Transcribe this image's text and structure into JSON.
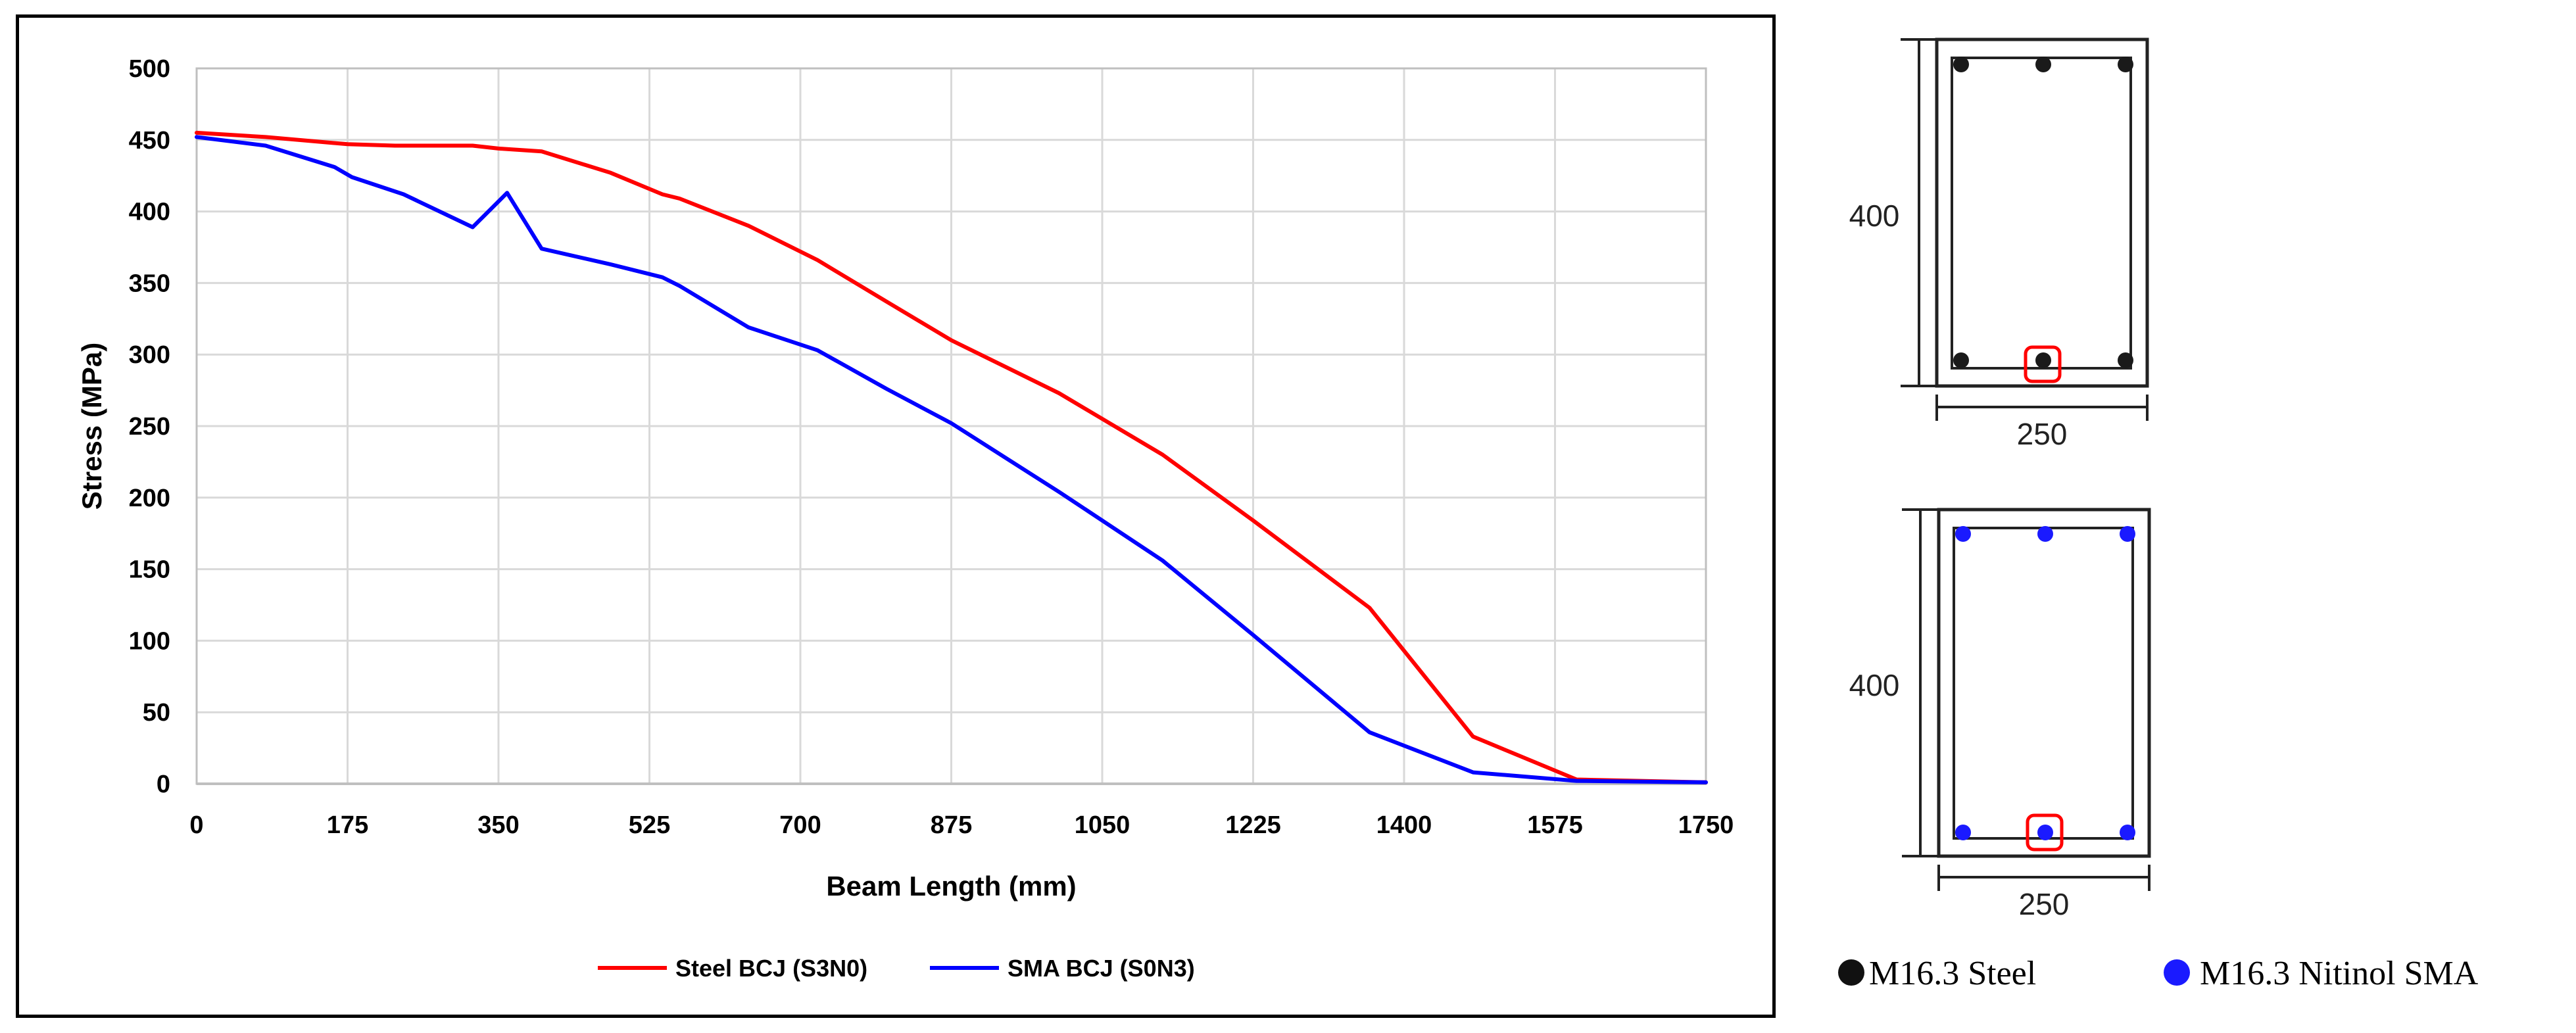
{
  "chart_data": {
    "type": "line",
    "xlabel": "Beam Length (mm)",
    "ylabel": "Stress (MPa)",
    "xlim": [
      0,
      1750
    ],
    "ylim": [
      0,
      500
    ],
    "xticks": [
      0,
      175,
      350,
      525,
      700,
      875,
      1050,
      1225,
      1400,
      1575,
      1750
    ],
    "yticks": [
      0,
      50,
      100,
      150,
      200,
      250,
      300,
      350,
      400,
      450,
      500
    ],
    "grid": true,
    "legend_position": "bottom",
    "series": [
      {
        "name": "Steel BCJ (S3N0)",
        "color": "#ff0000",
        "points": [
          [
            0,
            455
          ],
          [
            80,
            452
          ],
          [
            175,
            447
          ],
          [
            230,
            446
          ],
          [
            320,
            446
          ],
          [
            350,
            444
          ],
          [
            400,
            442
          ],
          [
            480,
            427
          ],
          [
            540,
            412
          ],
          [
            560,
            409
          ],
          [
            640,
            390
          ],
          [
            720,
            366
          ],
          [
            800,
            337
          ],
          [
            875,
            310
          ],
          [
            1000,
            273
          ],
          [
            1120,
            230
          ],
          [
            1225,
            184
          ],
          [
            1360,
            123
          ],
          [
            1480,
            33
          ],
          [
            1600,
            3
          ],
          [
            1750,
            1
          ]
        ]
      },
      {
        "name": "SMA BCJ (S0N3)",
        "color": "#0000ff",
        "points": [
          [
            0,
            452
          ],
          [
            80,
            446
          ],
          [
            160,
            431
          ],
          [
            180,
            424
          ],
          [
            240,
            412
          ],
          [
            320,
            389
          ],
          [
            360,
            413
          ],
          [
            400,
            374
          ],
          [
            480,
            363
          ],
          [
            540,
            354
          ],
          [
            560,
            348
          ],
          [
            640,
            319
          ],
          [
            720,
            303
          ],
          [
            800,
            276
          ],
          [
            875,
            252
          ],
          [
            1000,
            204
          ],
          [
            1120,
            156
          ],
          [
            1225,
            104
          ],
          [
            1360,
            36
          ],
          [
            1480,
            8
          ],
          [
            1600,
            2
          ],
          [
            1750,
            1
          ]
        ]
      }
    ]
  },
  "sections": {
    "top": {
      "height_label": "400",
      "width_label": "250",
      "bar_color": "#1a1a1a"
    },
    "bottom": {
      "height_label": "400",
      "width_label": "250",
      "bar_color": "#1a1aff"
    },
    "highlight_color": "#ff0000"
  },
  "bar_legend": [
    {
      "label": "M16.3 Steel",
      "color": "#111111"
    },
    {
      "label": "M16.3 Nitinol SMA",
      "color": "#1a1aff"
    }
  ]
}
